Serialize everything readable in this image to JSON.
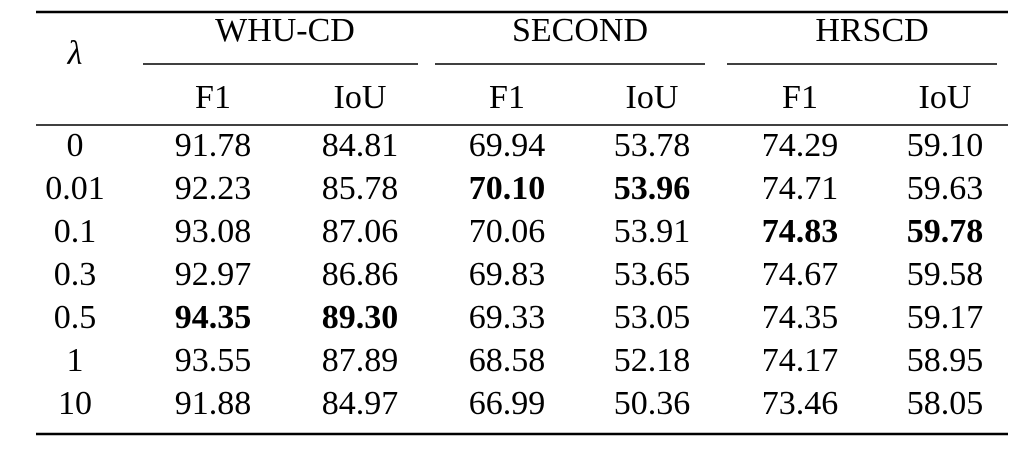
{
  "table": {
    "corner": "λ",
    "groups": [
      "WHU-CD",
      "SECOND",
      "HRSCD"
    ],
    "subheaders": [
      "F1",
      "IoU",
      "F1",
      "IoU",
      "F1",
      "IoU"
    ],
    "rows": [
      [
        "0",
        "91.78",
        "84.81",
        "69.94",
        "53.78",
        "74.29",
        "59.10"
      ],
      [
        "0.01",
        "92.23",
        "85.78",
        "70.10",
        "53.96",
        "74.71",
        "59.63"
      ],
      [
        "0.1",
        "93.08",
        "87.06",
        "70.06",
        "53.91",
        "74.83",
        "59.78"
      ],
      [
        "0.3",
        "92.97",
        "86.86",
        "69.83",
        "53.65",
        "74.67",
        "59.58"
      ],
      [
        "0.5",
        "94.35",
        "89.30",
        "69.33",
        "53.05",
        "74.35",
        "59.17"
      ],
      [
        "1",
        "93.55",
        "87.89",
        "68.58",
        "52.18",
        "74.17",
        "58.95"
      ],
      [
        "10",
        "91.88",
        "84.97",
        "66.99",
        "50.36",
        "73.46",
        "58.05"
      ]
    ],
    "bold": [
      [
        1,
        3
      ],
      [
        1,
        4
      ],
      [
        2,
        5
      ],
      [
        2,
        6
      ],
      [
        4,
        1
      ],
      [
        4,
        2
      ]
    ]
  }
}
